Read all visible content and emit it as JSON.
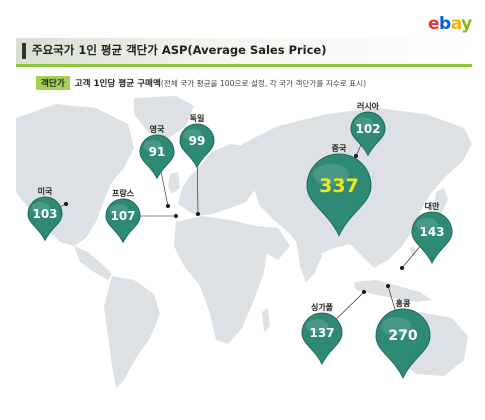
{
  "logo": {
    "p1": "e",
    "p2": "b",
    "p3": "a",
    "p4": "y"
  },
  "header": {
    "title": "주요국가 1인 평균 객단가 ASP(Average Sales Price)",
    "tag": "객단가",
    "description": "고객 1인당 평균 구매액",
    "note": "(전체 국가 평균을 100으로 설정, 각 국가 객단가를 지수로 표시)"
  },
  "colors": {
    "pin_fill": "#2f8a75",
    "pin_fill_dark": "#1d6a5a",
    "highlight_value": "#f4e61c",
    "map_land": "#dde1e4",
    "accent_green": "#8dc63f",
    "tag_green": "#a6cf58"
  },
  "chart_data": {
    "type": "map-bubble",
    "title": "주요국가 1인 평균 객단가 ASP(Average Sales Price)",
    "categories": [
      "미국",
      "영국",
      "독일",
      "프랑스",
      "러시아",
      "중국",
      "대만",
      "싱가폴",
      "홍콩"
    ],
    "values": [
      103,
      91,
      99,
      107,
      102,
      337,
      143,
      137,
      270
    ],
    "highlight": "중국"
  }
}
